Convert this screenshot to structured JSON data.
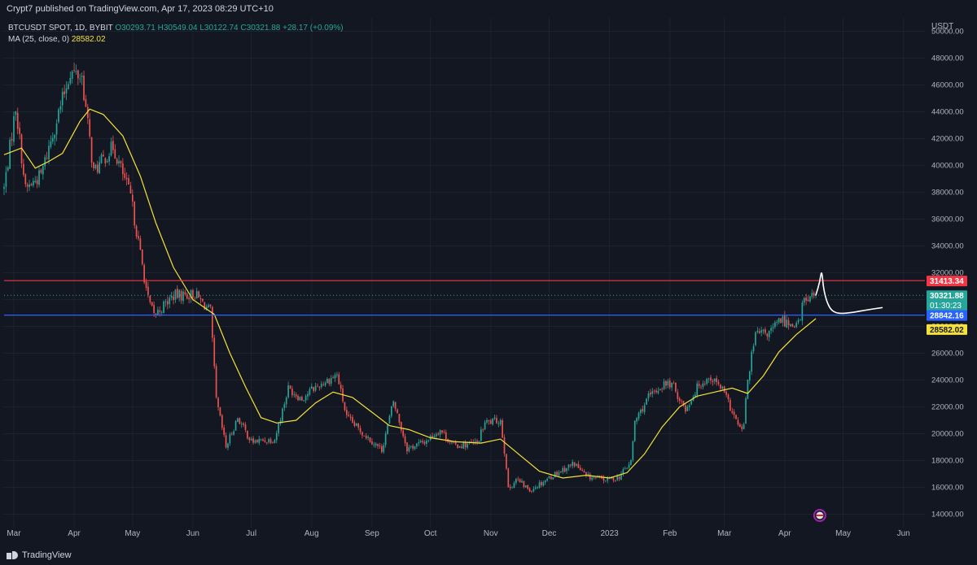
{
  "header": {
    "publisher": "Crypt7 published on TradingView.com, Apr 17, 2023 08:29 UTC+10"
  },
  "legend": {
    "symbol": "BTCUSDT SPOT, 1D, BYBIT",
    "open": "O30293.71",
    "high": "H30549.04",
    "low": "L30122.74",
    "close": "C30321.88",
    "change": "+28.17 (+0.09%)",
    "ma_label": "MA (25, close, 0)",
    "ma_value": "28582.02"
  },
  "footer": {
    "brand": "TradingView"
  },
  "colors": {
    "background": "#131722",
    "up": "#26a69a",
    "down": "#ef5350",
    "ma": "#f6e13a",
    "resistance": "#f23645",
    "support": "#2962ff",
    "drawing": "#ffffff",
    "grid": "#1e222d"
  },
  "chart_data": {
    "type": "candlestick",
    "unit": "USDT",
    "ylim": [
      13000,
      51000
    ],
    "y_ticks": [
      14000,
      16000,
      18000,
      20000,
      22000,
      24000,
      26000,
      28000,
      30000,
      32000,
      34000,
      36000,
      38000,
      40000,
      42000,
      44000,
      46000,
      48000,
      50000
    ],
    "y_tick_labels": [
      "14000.00",
      "16000.00",
      "18000.00",
      "20000.00",
      "22000.00",
      "24000.00",
      "26000.00",
      "28000.00",
      "30000.00",
      "32000.00",
      "34000.00",
      "36000.00",
      "38000.00",
      "40000.00",
      "42000.00",
      "44000.00",
      "46000.00",
      "48000.00",
      "50000.00"
    ],
    "x_range": [
      "2022-02-24",
      "2023-06-12"
    ],
    "x_ticks": [
      "2022-03-01",
      "2022-04-01",
      "2022-05-01",
      "2022-06-01",
      "2022-07-01",
      "2022-08-01",
      "2022-09-01",
      "2022-10-01",
      "2022-11-01",
      "2022-12-01",
      "2023-01-01",
      "2023-02-01",
      "2023-03-01",
      "2023-04-01",
      "2023-05-01",
      "2023-06-01"
    ],
    "x_tick_labels": [
      "Mar",
      "Apr",
      "May",
      "Jun",
      "Jul",
      "Aug",
      "Sep",
      "Oct",
      "Nov",
      "Dec",
      "2023",
      "Feb",
      "Mar",
      "Apr",
      "May",
      "Jun"
    ],
    "price_path": [
      [
        "2022-02-24",
        38300
      ],
      [
        "2022-03-02",
        44400
      ],
      [
        "2022-03-07",
        38200
      ],
      [
        "2022-03-15",
        39300
      ],
      [
        "2022-03-24",
        43900
      ],
      [
        "2022-03-30",
        47000
      ],
      [
        "2022-04-05",
        46600
      ],
      [
        "2022-04-11",
        39500
      ],
      [
        "2022-04-21",
        41400
      ],
      [
        "2022-04-30",
        37700
      ],
      [
        "2022-05-09",
        30000
      ],
      [
        "2022-05-12",
        28800
      ],
      [
        "2022-05-22",
        30300
      ],
      [
        "2022-06-02",
        30400
      ],
      [
        "2022-06-10",
        29100
      ],
      [
        "2022-06-13",
        22500
      ],
      [
        "2022-06-18",
        19000
      ],
      [
        "2022-06-24",
        21200
      ],
      [
        "2022-07-01",
        19400
      ],
      [
        "2022-07-13",
        19600
      ],
      [
        "2022-07-20",
        23400
      ],
      [
        "2022-07-27",
        22600
      ],
      [
        "2022-08-01",
        23300
      ],
      [
        "2022-08-14",
        24400
      ],
      [
        "2022-08-19",
        21200
      ],
      [
        "2022-08-27",
        20100
      ],
      [
        "2022-09-06",
        18800
      ],
      [
        "2022-09-12",
        22400
      ],
      [
        "2022-09-19",
        18900
      ],
      [
        "2022-09-28",
        19400
      ],
      [
        "2022-10-06",
        20300
      ],
      [
        "2022-10-13",
        19100
      ],
      [
        "2022-10-25",
        19300
      ],
      [
        "2022-10-29",
        20800
      ],
      [
        "2022-11-06",
        21000
      ],
      [
        "2022-11-09",
        17600
      ],
      [
        "2022-11-10",
        15800
      ],
      [
        "2022-11-14",
        16600
      ],
      [
        "2022-11-21",
        15800
      ],
      [
        "2022-12-05",
        17100
      ],
      [
        "2022-12-14",
        17800
      ],
      [
        "2022-12-20",
        16800
      ],
      [
        "2022-12-31",
        16550
      ],
      [
        "2023-01-06",
        16800
      ],
      [
        "2023-01-12",
        17900
      ],
      [
        "2023-01-14",
        20900
      ],
      [
        "2023-01-21",
        22700
      ],
      [
        "2023-01-29",
        23700
      ],
      [
        "2023-02-02",
        23700
      ],
      [
        "2023-02-09",
        21800
      ],
      [
        "2023-02-16",
        23700
      ],
      [
        "2023-02-22",
        24200
      ],
      [
        "2023-02-28",
        23300
      ],
      [
        "2023-03-03",
        22300
      ],
      [
        "2023-03-09",
        20300
      ],
      [
        "2023-03-11",
        20600
      ],
      [
        "2023-03-13",
        24100
      ],
      [
        "2023-03-17",
        27400
      ],
      [
        "2023-03-24",
        27500
      ],
      [
        "2023-03-30",
        28500
      ],
      [
        "2023-04-04",
        28200
      ],
      [
        "2023-04-09",
        28300
      ],
      [
        "2023-04-10",
        29700
      ],
      [
        "2023-04-12",
        30100
      ],
      [
        "2023-04-17",
        30321.88
      ]
    ],
    "ma": {
      "label": "MA (25, close, 0)",
      "points": [
        [
          "2022-02-24",
          40800
        ],
        [
          "2022-03-05",
          41300
        ],
        [
          "2022-03-12",
          39800
        ],
        [
          "2022-03-19",
          40300
        ],
        [
          "2022-03-26",
          40900
        ],
        [
          "2022-04-04",
          43300
        ],
        [
          "2022-04-09",
          44200
        ],
        [
          "2022-04-16",
          43800
        ],
        [
          "2022-04-26",
          42200
        ],
        [
          "2022-05-05",
          39200
        ],
        [
          "2022-05-13",
          35700
        ],
        [
          "2022-05-22",
          32400
        ],
        [
          "2022-06-01",
          30000
        ],
        [
          "2022-06-12",
          28900
        ],
        [
          "2022-06-20",
          26000
        ],
        [
          "2022-06-28",
          23500
        ],
        [
          "2022-07-06",
          21200
        ],
        [
          "2022-07-14",
          20800
        ],
        [
          "2022-07-24",
          21000
        ],
        [
          "2022-08-03",
          22300
        ],
        [
          "2022-08-12",
          23100
        ],
        [
          "2022-08-22",
          22700
        ],
        [
          "2022-09-01",
          21600
        ],
        [
          "2022-09-10",
          20600
        ],
        [
          "2022-09-20",
          20300
        ],
        [
          "2022-10-01",
          19700
        ],
        [
          "2022-10-14",
          19400
        ],
        [
          "2022-10-27",
          19300
        ],
        [
          "2022-11-06",
          19600
        ],
        [
          "2022-11-16",
          18400
        ],
        [
          "2022-11-26",
          17200
        ],
        [
          "2022-12-08",
          16700
        ],
        [
          "2022-12-20",
          16900
        ],
        [
          "2023-01-01",
          16700
        ],
        [
          "2023-01-10",
          17100
        ],
        [
          "2023-01-19",
          18500
        ],
        [
          "2023-01-28",
          20500
        ],
        [
          "2023-02-06",
          22000
        ],
        [
          "2023-02-15",
          22800
        ],
        [
          "2023-02-24",
          23100
        ],
        [
          "2023-03-05",
          23400
        ],
        [
          "2023-03-13",
          23000
        ],
        [
          "2023-03-21",
          24300
        ],
        [
          "2023-03-29",
          26100
        ],
        [
          "2023-04-07",
          27400
        ],
        [
          "2023-04-17",
          28582.02
        ]
      ]
    },
    "horizontal_lines": [
      {
        "price": 31413.34,
        "label": "31413.34",
        "color": "#f23645"
      },
      {
        "price": 28842.16,
        "label": "28842.16",
        "color": "#2962ff"
      }
    ],
    "last_price": {
      "price": 30321.88,
      "label": "30321.88",
      "countdown": "01:30:23"
    },
    "ma_price": {
      "price": 28582.02,
      "label": "28582.02"
    },
    "drawn_path": [
      [
        "2023-04-17",
        30350
      ],
      [
        "2023-04-19",
        31300
      ],
      [
        "2023-04-20",
        32300
      ],
      [
        "2023-04-21",
        30600
      ],
      [
        "2023-04-24",
        29300
      ],
      [
        "2023-04-28",
        28950
      ],
      [
        "2023-05-04",
        29000
      ],
      [
        "2023-05-12",
        29200
      ],
      [
        "2023-05-21",
        29400
      ]
    ]
  }
}
